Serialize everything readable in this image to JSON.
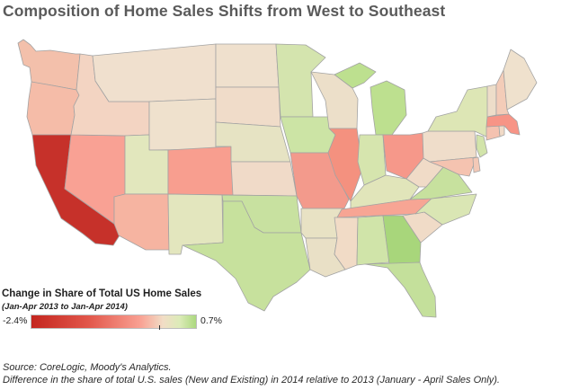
{
  "title": "Composition of Home Sales Shifts from West to Southeast",
  "legend": {
    "title": "Change in Share of Total US Home Sales",
    "subtitle": "(Jan-Apr 2013 to Jan-Apr 2014)",
    "min_label": "-2.4%",
    "max_label": "0.7%",
    "min_value": -2.4,
    "max_value": 0.7,
    "colors": {
      "min": "#c4261f",
      "mid_low": "#f9a092",
      "neutral": "#f1ddc6",
      "max": "#acd97f"
    }
  },
  "source": "Source: CoreLogic, Moody's Analytics.",
  "note": "Difference in the share of total U.S. sales (New and Existing) in 2014 relative to 2013 (January - April Sales Only).",
  "map_data": {
    "type": "choropleth",
    "region": "United States",
    "state_fills": {
      "WA": "#f3c0ab",
      "OR": "#f5bca8",
      "CA": "#c6312a",
      "NV": "#f9a194",
      "ID": "#f3d4c2",
      "MT": "#f0e0ce",
      "WY": "#efe1cd",
      "UT": "#e2e7bd",
      "AZ": "#f6b4a1",
      "CO": "#f89e8f",
      "NM": "#e3e6be",
      "ND": "#efe0cd",
      "SD": "#f0dcc9",
      "NE": "#e6e3c3",
      "KS": "#f0dac8",
      "OK": "#c8e1a0",
      "TX": "#c7e19d",
      "MN": "#d4e4ae",
      "IA": "#cce4a5",
      "MO": "#f39a8c",
      "AR": "#e8e2c4",
      "LA": "#e9e0c6",
      "WI": "#ecdfc9",
      "IL": "#f4917f",
      "MI": "#bde08f",
      "IN": "#d6e5ae",
      "OH": "#f6988a",
      "KY": "#e1e5ba",
      "TN": "#f7a594",
      "MS": "#f1dbc6",
      "AL": "#d0e4a9",
      "GA": "#a8d67b",
      "FL": "#c4e09b",
      "SC": "#f0dbc7",
      "NC": "#dae6b4",
      "VA": "#c7e19e",
      "WV": "#f0dbc7",
      "PA": "#efddca",
      "NY": "#dde6b5",
      "MD": "#f5c3b0",
      "DE": "#f3c9b7",
      "NJ": "#d2e4aa",
      "CT": "#f4c2b0",
      "RI": "#f1dac7",
      "MA": "#f79486",
      "VT": "#edddc9",
      "NH": "#f3ccb8",
      "ME": "#efe1cd"
    }
  }
}
